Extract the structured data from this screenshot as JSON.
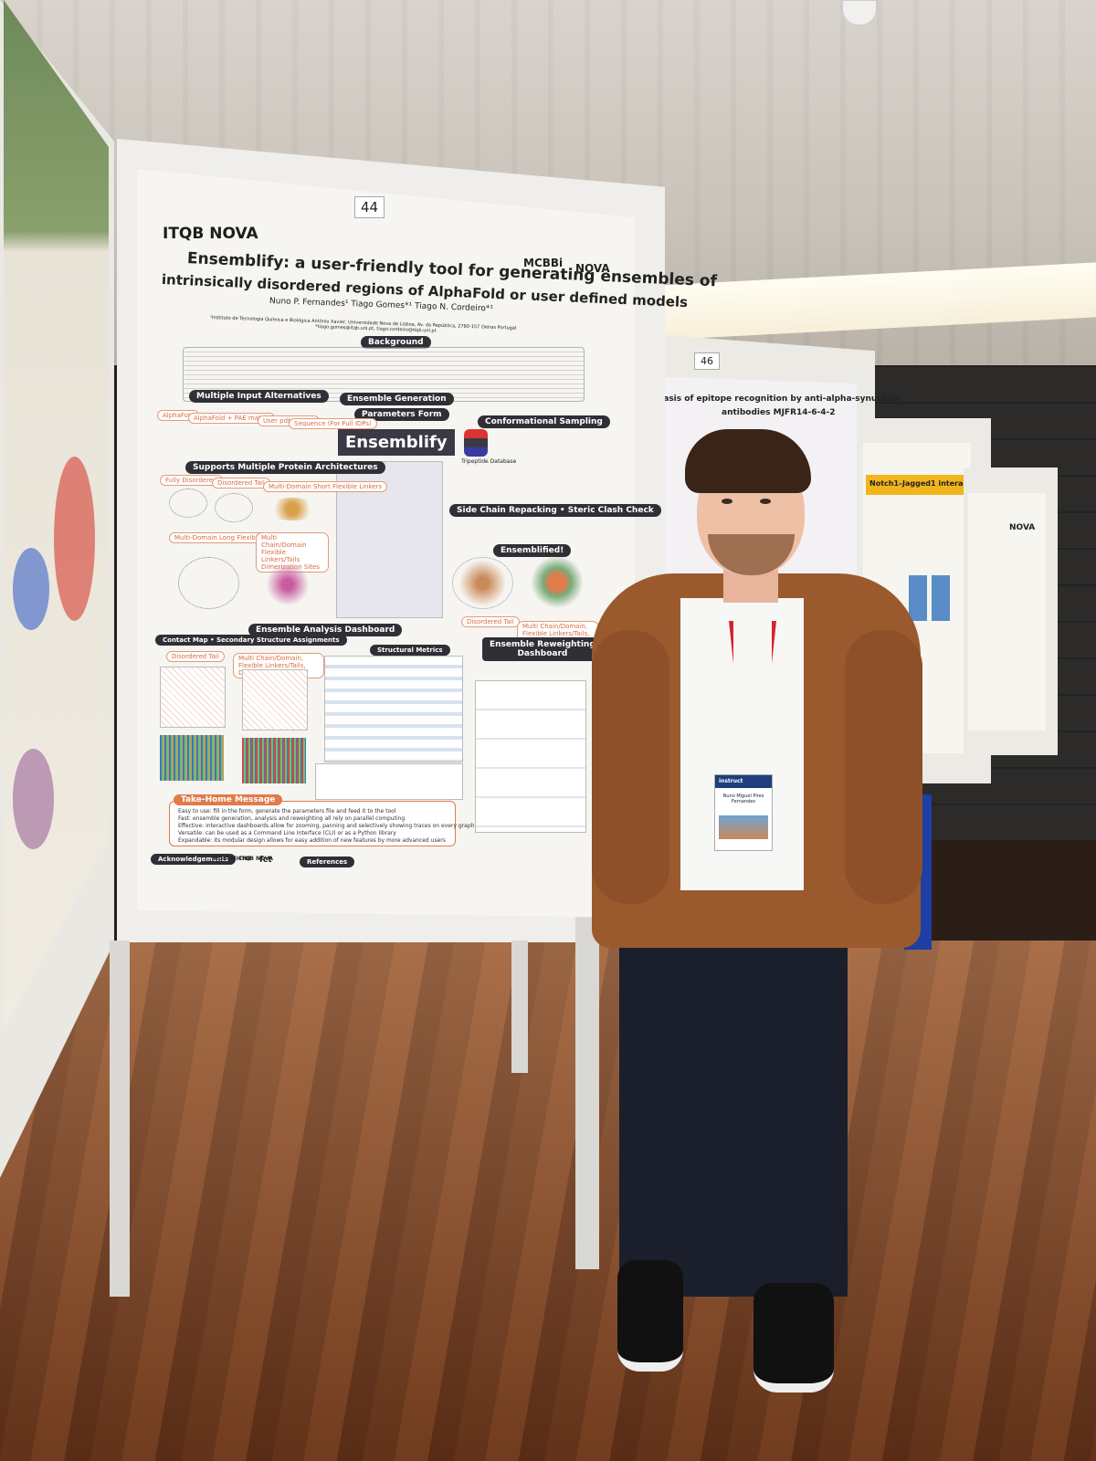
{
  "poster": {
    "number": "44",
    "org_logo": "ITQB NOVA",
    "partner_logos": [
      "MCBBi",
      "NOVA"
    ],
    "title_line1": "Ensemblify: a user-friendly tool for generating ensembles of",
    "title_line2": "intrinsically disordered regions of AlphaFold or user defined models",
    "authors": "Nuno P. Fernandes¹   Tiago Gomes*¹   Tiago N. Cordeiro*¹",
    "affiliation": "¹Instituto de Tecnologia Química e Biológica António Xavier, Universidade Nova de Lisboa, Av. da República, 2780-157 Oeiras Portugal",
    "emails": "*tiago.gomes@itqb.unl.pt, tiago.cordeiro@itqb.unl.pt",
    "sections": {
      "background": "Background",
      "s1": "Multiple Input Alternatives",
      "ensemble_generation": "Ensemble Generation",
      "s2": "Parameters Form",
      "s3": "Conformational Sampling",
      "supports": "Supports Multiple Protein Architectures",
      "s4": "Side Chain Repacking • Steric Clash Check",
      "s5": "Ensemblified!",
      "analysis": "Ensemble Analysis Dashboard",
      "reweighting_line1": "Ensemble Reweighting",
      "reweighting_line2": "Dashboard",
      "contact_map": "Contact Map • Secondary Structure Assignments",
      "structural_metrics": "Structural Metrics",
      "take_home": "Take-Home Message",
      "acknowledgements": "Acknowledgements",
      "references": "References"
    },
    "ensemblify_logo": "Ensemblify",
    "input_pills": [
      "AlphaFold",
      "AlphaFold + PAE matrix",
      "User pdb model",
      "Sequence (For Full IDPs)"
    ],
    "architecture_pills": [
      "Fully Disordered",
      "Disordered Tail",
      "Multi-Domain Short Flexible Linkers",
      "Multi-Domain Long Flexible Linker",
      "Multi Chain/Domain Flexible Linkers/Tails Dimerization Sites"
    ],
    "ensemblified_pills": [
      "Disordered Tail",
      "Multi Chain/Domain, Flexible Linkers/Tails, Dimerization Sites"
    ],
    "analysis_pills": [
      "Disordered Tail",
      "Multi Chain/Domain, Flexible Linkers/Tails, Dimerization Sites"
    ],
    "tripeptide_db": "Tripeptide Database",
    "take_home_lines": [
      "Easy to use: fill in the form, generate the parameters file and feed it to the tool",
      "Fast: ensemble generation, analysis and reweighting all rely on parallel computing",
      "Effective: interactive dashboards allow for zooming, panning and selectively showing traces on every graph",
      "Versatile: can be used as a Command Line Interface (CLI) or as a Python library",
      "Expandable: its modular design allows for easy addition of new features by more advanced users"
    ],
    "footer_logos": [
      "MOSTMICRO",
      "ITQB NOVA",
      "fct"
    ]
  },
  "neighbor_poster": {
    "number": "46",
    "title_line1": "...asis of epitope recognition by anti-alpha-synuclein",
    "title_line2": "antibodies MJFR14-6-4-2"
  },
  "poster_47": {
    "title": "Notch1–Jagged1 interaction"
  },
  "poster_48": {
    "logo": "NOVA"
  },
  "badge": {
    "event": "instruct",
    "name": "Nuno Miguel Pires Fernandes"
  },
  "colors": {
    "poster_accent": "#e07b4a",
    "section_dark": "#2f2f35",
    "jacket": "#9a5a2e",
    "lanyard": "#d4252b",
    "floor": "#7a3f1f"
  }
}
